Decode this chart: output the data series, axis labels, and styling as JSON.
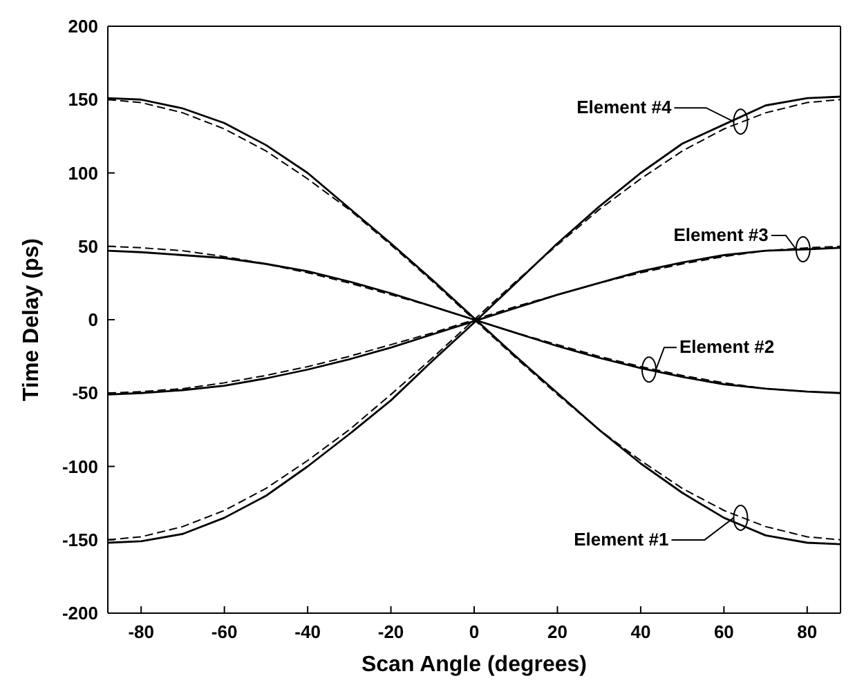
{
  "chart_data": {
    "type": "line",
    "xlabel": "Scan Angle (degrees)",
    "ylabel": "Time Delay (ps)",
    "x": [
      -88,
      -80,
      -70,
      -60,
      -50,
      -40,
      -30,
      -20,
      -10,
      0,
      10,
      20,
      30,
      40,
      50,
      60,
      70,
      80,
      88
    ],
    "series": [
      {
        "color": "#000000",
        "line_style": "solid",
        "values": [
          -152,
          -151,
          -146,
          -135,
          -120,
          -100,
          -78,
          -55,
          -28,
          -2,
          25,
          52,
          77,
          100,
          120,
          133,
          146,
          151,
          152
        ]
      },
      {
        "color": "#000000",
        "line_style": "dashed",
        "values": [
          -150,
          -148,
          -141,
          -130,
          -115,
          -96,
          -75,
          -51,
          -26,
          0,
          26,
          51,
          75,
          96,
          115,
          130,
          141,
          148,
          150
        ]
      },
      {
        "color": "#000000",
        "line_style": "solid",
        "values": [
          -51,
          -50,
          -48,
          -45,
          -40,
          -34,
          -27,
          -19,
          -10,
          -1,
          8,
          17,
          25,
          33,
          39,
          44,
          47,
          48,
          49
        ]
      },
      {
        "color": "#000000",
        "line_style": "dashed",
        "values": [
          -50,
          -49,
          -47,
          -43,
          -38,
          -32,
          -25,
          -17,
          -9,
          0,
          9,
          17,
          25,
          32,
          38,
          43,
          47,
          49,
          50
        ]
      },
      {
        "color": "#000000",
        "line_style": "solid",
        "values": [
          47,
          46,
          44,
          42,
          38,
          33,
          26,
          18,
          9,
          0,
          -9,
          -18,
          -26,
          -33,
          -39,
          -44,
          -47,
          -49,
          -50
        ]
      },
      {
        "color": "#000000",
        "line_style": "dashed",
        "values": [
          50,
          49,
          47,
          43,
          38,
          32,
          25,
          17,
          9,
          0,
          -9,
          -17,
          -25,
          -32,
          -38,
          -43,
          -47,
          -49,
          -50
        ]
      },
      {
        "color": "#000000",
        "line_style": "solid",
        "values": [
          151,
          150,
          144,
          134,
          119,
          100,
          76,
          52,
          27,
          1,
          -25,
          -50,
          -75,
          -98,
          -118,
          -135,
          -147,
          -152,
          -153
        ]
      },
      {
        "color": "#000000",
        "line_style": "dashed",
        "values": [
          150,
          148,
          141,
          130,
          115,
          96,
          75,
          51,
          26,
          0,
          -26,
          -51,
          -75,
          -96,
          -115,
          -130,
          -141,
          -148,
          -150
        ]
      }
    ],
    "xlim": [
      -88,
      88
    ],
    "xticks": [
      -80,
      -60,
      -40,
      -20,
      0,
      20,
      40,
      60,
      80
    ],
    "ylim": [
      -200,
      200
    ],
    "yticks": [
      -200,
      -150,
      -100,
      -50,
      0,
      50,
      100,
      150,
      200
    ],
    "grid": false,
    "legend": false,
    "annotations": [
      {
        "text": "Element #4",
        "x": 64,
        "y": 135
      },
      {
        "text": "Element #3",
        "x": 79,
        "y": 48
      },
      {
        "text": "Element #2",
        "x": 42,
        "y": -34
      },
      {
        "text": "Element #1",
        "x": 64,
        "y": -135
      }
    ]
  }
}
